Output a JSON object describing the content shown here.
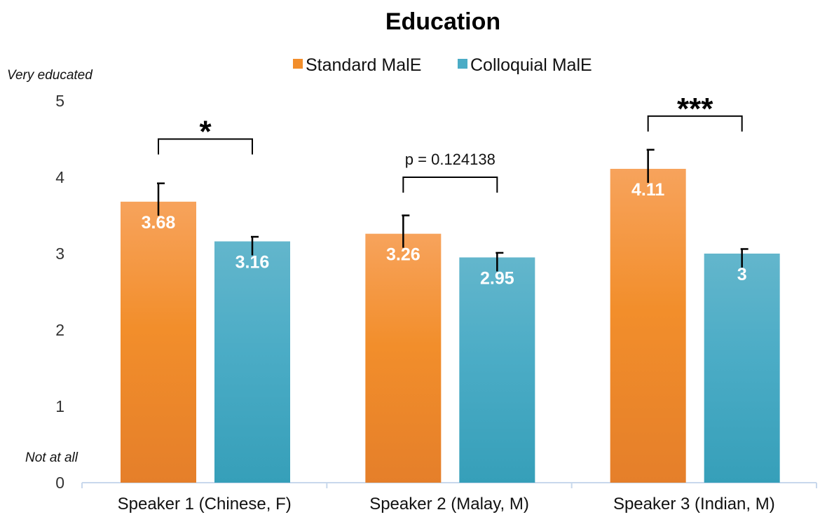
{
  "chart_data": {
    "type": "bar",
    "title": "Education",
    "categories": [
      "Speaker 1 (Chinese, F)",
      "Speaker 2 (Malay, M)",
      "Speaker 3 (Indian, M)"
    ],
    "series": [
      {
        "name": "Standard MalE",
        "values": [
          3.68,
          3.26,
          4.11
        ],
        "value_labels": [
          "3.68",
          "3.26",
          "4.11"
        ],
        "error_upper": [
          0.24,
          0.24,
          0.25
        ],
        "color": "#F28E2B",
        "color_top": "#F7A35C",
        "color_bottom": "#E57F2A"
      },
      {
        "name": "Colloquial MalE",
        "values": [
          3.16,
          2.95,
          3.0
        ],
        "value_labels": [
          "3.16",
          "2.95",
          "3"
        ],
        "error_upper": [
          0.06,
          0.06,
          0.06
        ],
        "color": "#4BACC6",
        "color_top": "#63B6CC",
        "color_bottom": "#369FB9"
      }
    ],
    "ylim": [
      0,
      5
    ],
    "yticks": [
      "0",
      "1",
      "2",
      "3",
      "4",
      "5"
    ],
    "ytick_values": [
      0,
      1,
      2,
      3,
      4,
      5
    ],
    "y_top_label": "Very educated",
    "y_bottom_label": "Not at all",
    "significance": [
      {
        "label": "*",
        "style": "stars",
        "bracket_level": 4.5
      },
      {
        "label": "p = 0.124138",
        "style": "text",
        "bracket_level": 4.0
      },
      {
        "label": "***",
        "style": "stars",
        "bracket_level": 4.8
      }
    ],
    "legend_position": "top-center",
    "grid": false
  }
}
